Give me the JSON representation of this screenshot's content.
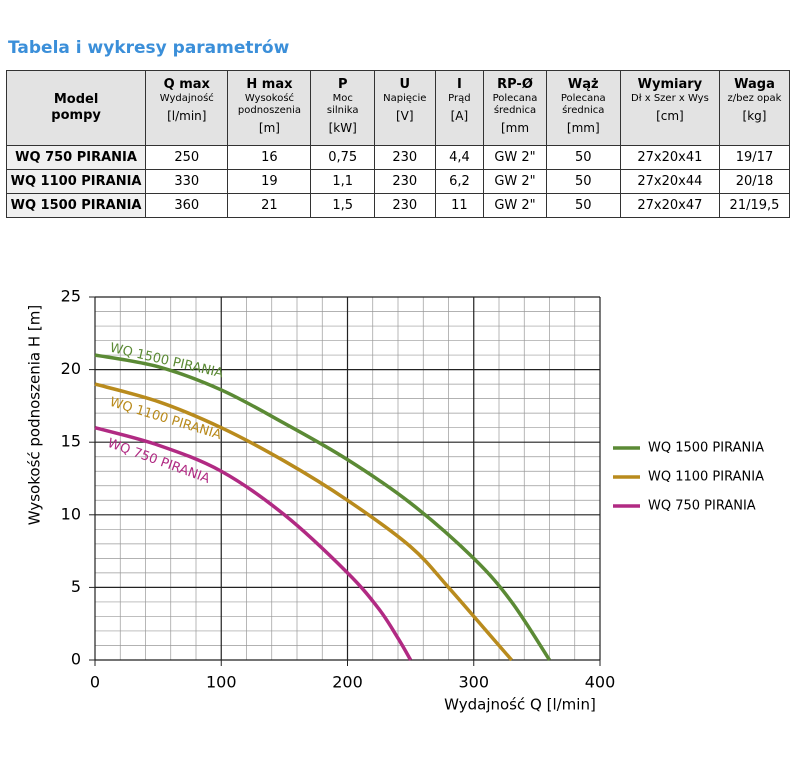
{
  "header": {
    "title": "Tabela i wykresy parametrów"
  },
  "table": {
    "header": [
      [
        "Model",
        "pompy"
      ],
      [
        "Q max",
        "Wydajność",
        "[l/min]"
      ],
      [
        "H max",
        "Wysokość",
        "podnoszenia",
        "[m]"
      ],
      [
        "P",
        "Moc",
        "silnika",
        "[kW]"
      ],
      [
        "U",
        "Napięcie",
        "[V]"
      ],
      [
        "I",
        "Prąd",
        "[A]"
      ],
      [
        "RP-Ø",
        "Polecana",
        "średnica",
        "[mm"
      ],
      [
        "Wąż",
        "Polecana",
        "średnica",
        "[mm]"
      ],
      [
        "Wymiary",
        "Dł x Szer x Wys",
        "[cm]"
      ],
      [
        "Waga",
        "z/bez opak",
        "[kg]"
      ]
    ],
    "rows": [
      [
        "WQ 750 PIRANIA",
        "250",
        "16",
        "0,75",
        "230",
        "4,4",
        "GW 2\"",
        "50",
        "27x20x41",
        "19/17"
      ],
      [
        "WQ 1100 PIRANIA",
        "330",
        "19",
        "1,1",
        "230",
        "6,2",
        "GW 2\"",
        "50",
        "27x20x44",
        "20/18"
      ],
      [
        "WQ 1500 PIRANIA",
        "360",
        "21",
        "1,5",
        "230",
        "11",
        "GW 2\"",
        "50",
        "27x20x47",
        "21/19,5"
      ]
    ]
  },
  "chart_data": {
    "type": "line",
    "x_label": "Wydajność Q [l/min]",
    "y_label": "Wysokość podnoszenia H [m]",
    "xlim": [
      0,
      400
    ],
    "ylim": [
      0,
      25
    ],
    "xticks": [
      0,
      100,
      200,
      300,
      400
    ],
    "yticks": [
      0,
      5,
      10,
      15,
      20,
      25
    ],
    "xminorticks": [
      20,
      40,
      60,
      80,
      120,
      140,
      160,
      180,
      220,
      240,
      260,
      280,
      320,
      340,
      360,
      380
    ],
    "yminorticks": [
      1,
      2,
      3,
      4,
      6,
      7,
      8,
      9,
      11,
      12,
      13,
      14,
      16,
      17,
      18,
      19,
      21,
      22,
      23,
      24
    ],
    "grid": true,
    "legend": "right",
    "series": [
      {
        "name": "WQ 1500 PIRANIA",
        "color": "#5b8a35",
        "x": [
          0,
          50,
          100,
          150,
          200,
          250,
          300,
          330,
          360
        ],
        "values": [
          21,
          20.2,
          18.6,
          16.3,
          13.8,
          10.8,
          7,
          4,
          0
        ]
      },
      {
        "name": "WQ 1100 PIRANIA",
        "color": "#b98b1d",
        "x": [
          0,
          50,
          100,
          150,
          200,
          250,
          280,
          310,
          330
        ],
        "values": [
          19,
          17.8,
          16,
          13.7,
          11,
          7.8,
          5,
          2,
          0
        ]
      },
      {
        "name": "WQ 750 PIRANIA",
        "color": "#b12a83",
        "x": [
          0,
          50,
          100,
          150,
          200,
          225,
          240,
          250
        ],
        "values": [
          16,
          14.8,
          13,
          10,
          6,
          3.5,
          1.5,
          0
        ]
      }
    ]
  }
}
